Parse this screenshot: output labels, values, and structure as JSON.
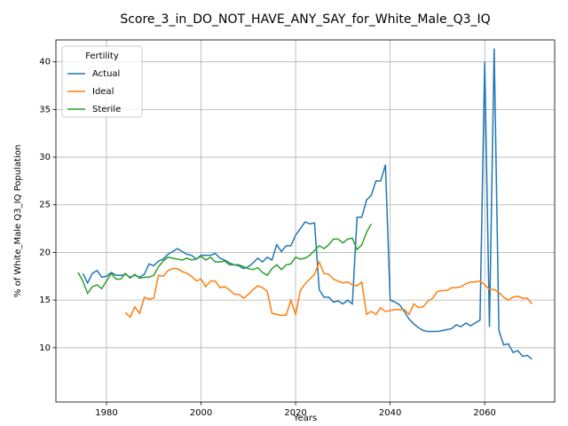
{
  "chart_data": {
    "type": "line",
    "title": "Score_3_in_DO_NOT_HAVE_ANY_SAY_for_White_Male_Q3_IQ",
    "xlabel": "Years",
    "ylabel": "% of White_Male Q3_IQ Population",
    "legend_title": "Fertility",
    "legend": "upper left",
    "grid": true,
    "xlim": [
      1969.3,
      2074.8
    ],
    "ylim": [
      4.3,
      42.3
    ],
    "xticks": [
      1980,
      2000,
      2020,
      2040,
      2060
    ],
    "yticks": [
      10,
      15,
      20,
      25,
      30,
      35,
      40
    ],
    "series": [
      {
        "name": "Actual",
        "color": "#1f77b4",
        "x": [
          1975,
          1976,
          1977,
          1978,
          1979,
          1980,
          1981,
          1982,
          1983,
          1984,
          1985,
          1986,
          1987,
          1988,
          1989,
          1990,
          1991,
          1992,
          1993,
          1994,
          1995,
          1996,
          1997,
          1998,
          1999,
          2000,
          2001,
          2002,
          2003,
          2004,
          2005,
          2006,
          2007,
          2008,
          2009,
          2010,
          2011,
          2012,
          2013,
          2014,
          2015,
          2016,
          2017,
          2018,
          2019,
          2020,
          2021,
          2022,
          2023,
          2024,
          2025,
          2026,
          2027,
          2028,
          2029,
          2030,
          2031,
          2032,
          2033,
          2034,
          2035,
          2036,
          2037,
          2038,
          2039,
          2040,
          2041,
          2042,
          2043,
          2044,
          2045,
          2046,
          2047,
          2048,
          2049,
          2050,
          2051,
          2052,
          2053,
          2054,
          2055,
          2056,
          2057,
          2058,
          2059,
          2060,
          2061,
          2062,
          2063,
          2064,
          2065,
          2066,
          2067,
          2068,
          2069,
          2070
        ],
        "values": [
          17.8,
          16.8,
          17.8,
          18.1,
          17.4,
          17.5,
          17.9,
          17.6,
          17.6,
          17.7,
          17.4,
          17.6,
          17.4,
          17.7,
          18.8,
          18.6,
          19.1,
          19.3,
          19.8,
          20.1,
          20.4,
          20.1,
          19.8,
          19.7,
          19.3,
          19.7,
          19.7,
          19.7,
          19.9,
          19.4,
          19.2,
          18.9,
          18.7,
          18.6,
          18.3,
          18.5,
          18.9,
          19.4,
          19.0,
          19.5,
          19.2,
          20.8,
          20.1,
          20.7,
          20.7,
          21.8,
          22.5,
          23.2,
          23.0,
          23.1,
          16.1,
          15.3,
          15.3,
          14.8,
          14.9,
          14.6,
          15.0,
          14.6,
          23.7,
          23.7,
          25.5,
          26.0,
          27.5,
          27.5,
          29.2,
          15.0,
          14.8,
          14.5,
          13.8,
          13.0,
          12.5,
          12.1,
          11.8,
          11.7,
          11.7,
          11.7,
          11.8,
          11.9,
          12.0,
          12.4,
          12.2,
          12.6,
          12.3,
          12.6,
          12.9,
          40.0,
          12.2,
          41.4,
          11.8,
          10.3,
          10.4,
          9.5,
          9.7,
          9.1,
          9.2,
          8.8
        ]
      },
      {
        "name": "Ideal",
        "color": "#ff7f0e",
        "x": [
          1984,
          1985,
          1986,
          1987,
          1988,
          1989,
          1990,
          1991,
          1992,
          1993,
          1994,
          1995,
          1996,
          1997,
          1998,
          1999,
          2000,
          2001,
          2002,
          2003,
          2004,
          2005,
          2006,
          2007,
          2008,
          2009,
          2010,
          2011,
          2012,
          2013,
          2014,
          2015,
          2016,
          2017,
          2018,
          2019,
          2020,
          2021,
          2022,
          2023,
          2024,
          2025,
          2026,
          2027,
          2028,
          2029,
          2030,
          2031,
          2032,
          2033,
          2034,
          2035,
          2036,
          2037,
          2038,
          2039,
          2040,
          2041,
          2042,
          2043,
          2044,
          2045,
          2046,
          2047,
          2048,
          2049,
          2050,
          2051,
          2052,
          2053,
          2054,
          2055,
          2056,
          2057,
          2058,
          2059,
          2060,
          2061,
          2062,
          2063,
          2064,
          2065,
          2066,
          2067,
          2068,
          2069,
          2070
        ],
        "values": [
          13.7,
          13.2,
          14.3,
          13.6,
          15.3,
          15.1,
          15.2,
          17.6,
          17.5,
          18.1,
          18.3,
          18.3,
          18.0,
          17.8,
          17.5,
          17.0,
          17.2,
          16.4,
          17.0,
          17.0,
          16.3,
          16.4,
          16.1,
          15.6,
          15.6,
          15.2,
          15.6,
          16.1,
          16.5,
          16.3,
          15.9,
          13.6,
          13.5,
          13.4,
          13.4,
          15.0,
          13.5,
          16.0,
          16.7,
          17.2,
          17.7,
          19.0,
          17.8,
          17.7,
          17.2,
          17.0,
          16.8,
          16.9,
          16.6,
          16.5,
          16.9,
          13.5,
          13.8,
          13.5,
          14.2,
          13.8,
          13.9,
          14.0,
          14.0,
          14.0,
          13.5,
          14.6,
          14.2,
          14.3,
          14.9,
          15.2,
          15.9,
          16.0,
          16.0,
          16.3,
          16.3,
          16.4,
          16.7,
          16.9,
          16.9,
          17.0,
          16.6,
          16.1,
          16.1,
          15.8,
          15.3,
          15.0,
          15.3,
          15.4,
          15.2,
          15.2,
          14.6
        ]
      },
      {
        "name": "Sterile",
        "color": "#2ca02c",
        "x": [
          1974,
          1975,
          1976,
          1977,
          1978,
          1979,
          1980,
          1981,
          1982,
          1983,
          1984,
          1985,
          1986,
          1987,
          1988,
          1989,
          1990,
          1991,
          1992,
          1993,
          1994,
          1995,
          1996,
          1997,
          1998,
          1999,
          2000,
          2001,
          2002,
          2003,
          2004,
          2005,
          2006,
          2007,
          2008,
          2009,
          2010,
          2011,
          2012,
          2013,
          2014,
          2015,
          2016,
          2017,
          2018,
          2019,
          2020,
          2021,
          2022,
          2023,
          2024,
          2025,
          2026,
          2027,
          2028,
          2029,
          2030,
          2031,
          2032,
          2033,
          2034,
          2035,
          2036
        ],
        "values": [
          17.9,
          17.0,
          15.7,
          16.4,
          16.6,
          16.2,
          17.0,
          17.8,
          17.2,
          17.2,
          17.8,
          17.3,
          17.7,
          17.3,
          17.4,
          17.4,
          17.6,
          18.5,
          19.1,
          19.5,
          19.4,
          19.3,
          19.2,
          19.4,
          19.2,
          19.3,
          19.6,
          19.2,
          19.5,
          19.0,
          19.0,
          19.1,
          18.7,
          18.7,
          18.7,
          18.5,
          18.3,
          18.2,
          18.4,
          17.9,
          17.6,
          18.3,
          18.7,
          18.2,
          18.7,
          18.8,
          19.5,
          19.3,
          19.4,
          19.7,
          20.2,
          20.7,
          20.4,
          20.8,
          21.4,
          21.4,
          21.0,
          21.4,
          21.5,
          20.3,
          20.8,
          22.1,
          23.0
        ]
      }
    ]
  }
}
